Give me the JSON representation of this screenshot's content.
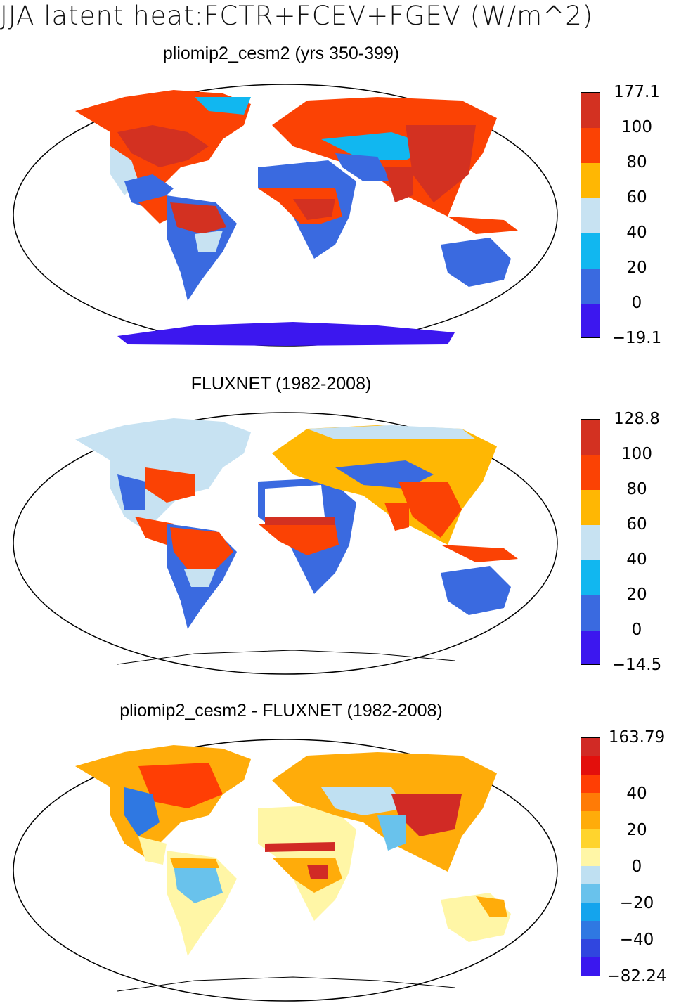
{
  "figure": {
    "title": "JJA latent heat:FCTR+FCEV+FGEV (W/m^2)"
  },
  "panels": [
    {
      "title": "pliomip2_cesm2 (yrs 350-399)",
      "colorbar": {
        "labels": [
          "177.1",
          "100",
          "80",
          "60",
          "40",
          "20",
          "0",
          "−19.1"
        ],
        "colors": [
          "#d33121",
          "#fb4204",
          "#ffb703",
          "#c7e2f2",
          "#11b7f0",
          "#3a6ae0",
          "#3c17ef"
        ]
      }
    },
    {
      "title": "FLUXNET (1982-2008)",
      "colorbar": {
        "labels": [
          "128.8",
          "100",
          "80",
          "60",
          "40",
          "20",
          "0",
          "−14.5"
        ],
        "colors": [
          "#d33121",
          "#fb4204",
          "#ffb703",
          "#c7e2f2",
          "#11b7f0",
          "#3a6ae0",
          "#3c17ef"
        ]
      }
    },
    {
      "title": "pliomip2_cesm2 - FLUXNET (1982-2008)",
      "colorbar": {
        "labels": [
          "163.79",
          "",
          "40",
          "",
          "20",
          "",
          "0",
          "",
          "−20",
          "",
          "−40",
          "",
          "−82.24"
        ],
        "colors": [
          "#d12a25",
          "#e30f0c",
          "#ff3e04",
          "#ff7b06",
          "#ffac0a",
          "#ffd42d",
          "#fff6a6",
          "#bfe0f2",
          "#69c2ec",
          "#14a4ed",
          "#2f78e2",
          "#3046df",
          "#3a17ef"
        ]
      }
    }
  ]
}
